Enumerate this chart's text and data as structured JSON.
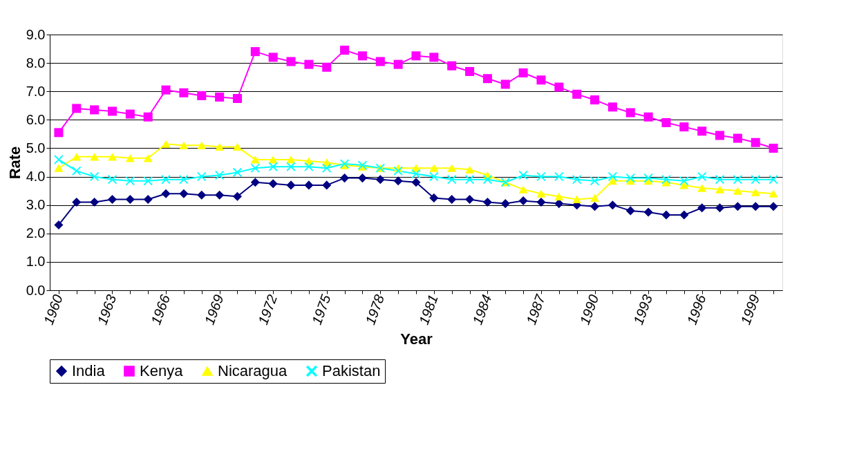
{
  "chart_data": {
    "type": "line",
    "xlabel": "Year",
    "ylabel": "Rate",
    "categories": [
      "1960",
      null,
      null,
      "1963",
      null,
      null,
      "1966",
      null,
      null,
      "1969",
      null,
      null,
      "1972",
      null,
      null,
      "1975",
      null,
      null,
      "1978",
      null,
      null,
      "1981",
      null,
      null,
      "1984",
      null,
      null,
      "1987",
      null,
      null,
      "1990",
      null,
      null,
      "1993",
      null,
      null,
      "1996",
      null,
      null,
      "1999",
      null
    ],
    "ylim": [
      0,
      9
    ],
    "yticks": [
      {
        "value": 0,
        "label": "0.0"
      },
      {
        "value": 1,
        "label": "1.0"
      },
      {
        "value": 2,
        "label": "2.0"
      },
      {
        "value": 3,
        "label": "3.0"
      },
      {
        "value": 4,
        "label": "4.0"
      },
      {
        "value": 5,
        "label": "5.0"
      },
      {
        "value": 6,
        "label": "6.0"
      },
      {
        "value": 7,
        "label": "7.0"
      },
      {
        "value": 8,
        "label": "8.0"
      },
      {
        "value": 9,
        "label": "9.0"
      }
    ],
    "grid": "y",
    "legend": "bottom",
    "line_style": "solid",
    "series": [
      {
        "name": "India",
        "color": "#000080",
        "marker": "diamond",
        "values": [
          2.3,
          3.1,
          3.1,
          3.2,
          3.2,
          3.2,
          3.4,
          3.4,
          3.35,
          3.35,
          3.3,
          3.8,
          3.75,
          3.7,
          3.7,
          3.7,
          3.95,
          3.95,
          3.9,
          3.85,
          3.8,
          3.25,
          3.2,
          3.2,
          3.1,
          3.05,
          3.15,
          3.1,
          3.05,
          3.0,
          2.95,
          3.0,
          2.8,
          2.75,
          2.65,
          2.65,
          2.9,
          2.9,
          2.95,
          2.95,
          2.95
        ]
      },
      {
        "name": "Kenya",
        "color": "#ff00ff",
        "marker": "square",
        "values": [
          5.55,
          6.4,
          6.35,
          6.3,
          6.2,
          6.1,
          7.05,
          6.95,
          6.85,
          6.8,
          6.75,
          8.4,
          8.2,
          8.05,
          7.95,
          7.85,
          8.45,
          8.25,
          8.05,
          7.95,
          8.25,
          8.2,
          7.9,
          7.7,
          7.45,
          7.25,
          7.65,
          7.4,
          7.15,
          6.9,
          6.7,
          6.45,
          6.25,
          6.1,
          5.9,
          5.75,
          5.6,
          5.45,
          5.35,
          5.2,
          5.0
        ]
      },
      {
        "name": "Nicaragua",
        "color": "#ffff00",
        "marker": "triangle",
        "values": [
          4.3,
          4.7,
          4.7,
          4.7,
          4.65,
          4.65,
          5.15,
          5.1,
          5.1,
          5.05,
          5.05,
          4.6,
          4.6,
          4.6,
          4.55,
          4.5,
          4.4,
          4.35,
          4.3,
          4.3,
          4.3,
          4.3,
          4.3,
          4.25,
          4.05,
          3.8,
          3.55,
          3.4,
          3.3,
          3.2,
          3.25,
          3.85,
          3.85,
          3.85,
          3.8,
          3.7,
          3.6,
          3.55,
          3.5,
          3.45,
          3.4
        ]
      },
      {
        "name": "Pakistan",
        "color": "#00ffff",
        "marker": "cross",
        "values": [
          4.6,
          4.2,
          4.0,
          3.9,
          3.85,
          3.85,
          3.9,
          3.9,
          4.0,
          4.05,
          4.15,
          4.3,
          4.35,
          4.35,
          4.35,
          4.3,
          4.45,
          4.4,
          4.3,
          4.2,
          4.1,
          4.0,
          3.9,
          3.9,
          3.9,
          3.8,
          4.05,
          4.0,
          4.0,
          3.9,
          3.85,
          4.0,
          3.95,
          3.95,
          3.9,
          3.85,
          4.0,
          3.9,
          3.9,
          3.9,
          3.9
        ]
      }
    ]
  }
}
